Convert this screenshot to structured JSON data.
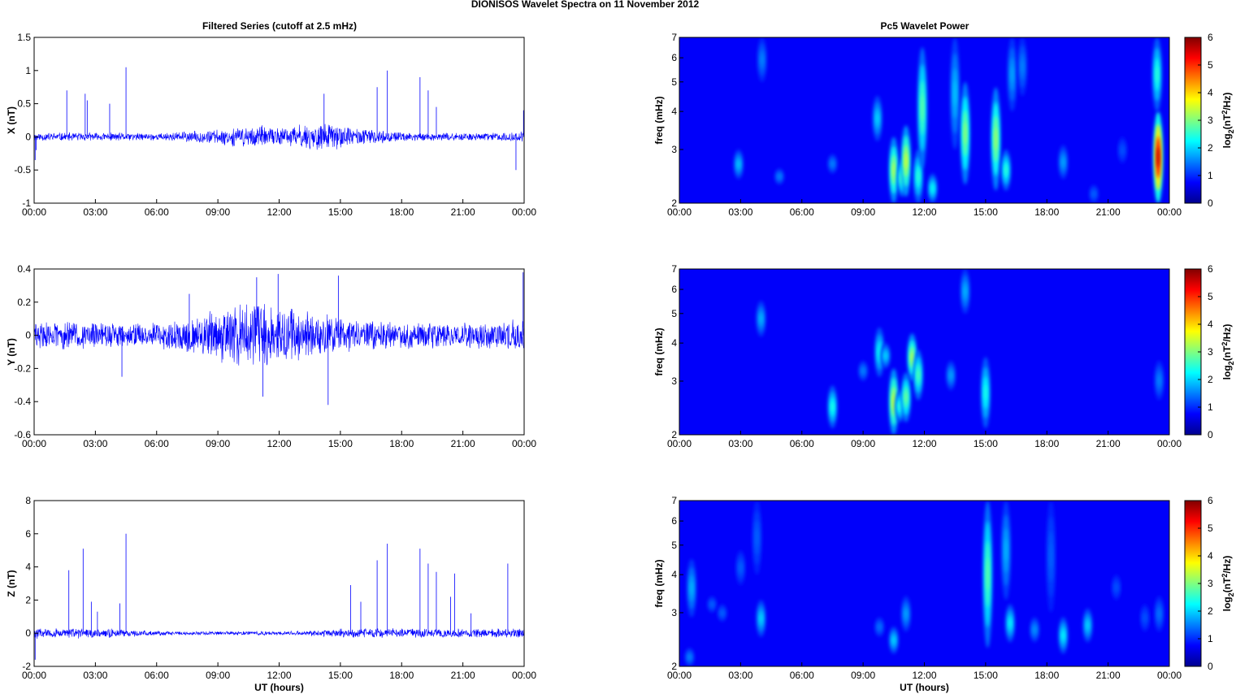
{
  "figure": {
    "title": "DIONISOS Wavelet Spectra on 11 November  2012",
    "left_title": "Filtered Series (cutoff at 2.5 mHz)",
    "right_title": "Pc5 Wavelet Power"
  },
  "chart_data": [
    {
      "type": "line",
      "id": "x-series",
      "ylabel": "X (nT)",
      "xlabel": "",
      "xlim": [
        0,
        24
      ],
      "ylim": [
        -1,
        1.5
      ],
      "yticks": [
        "-1",
        "-0.5",
        "0",
        "0.5",
        "1",
        "1.5"
      ],
      "xticks": [
        "00:00",
        "03:00",
        "06:00",
        "09:00",
        "12:00",
        "15:00",
        "18:00",
        "21:00",
        "00:00"
      ],
      "grid": false,
      "color": "#0000ff",
      "envelope_x": [
        0,
        3,
        6,
        7.5,
        9,
        10,
        11,
        11.5,
        12,
        13,
        14,
        14.5,
        15,
        16,
        17,
        18,
        21,
        23.8,
        24
      ],
      "envelope_y": [
        0.07,
        0.07,
        0.06,
        0.09,
        0.12,
        0.16,
        0.19,
        0.15,
        0.15,
        0.2,
        0.22,
        0.24,
        0.18,
        0.14,
        0.1,
        0.07,
        0.06,
        0.08,
        0.1
      ],
      "spikes": [
        [
          1.6,
          0.7
        ],
        [
          2.5,
          0.65
        ],
        [
          2.6,
          0.55
        ],
        [
          3.7,
          0.5
        ],
        [
          4.5,
          1.05
        ],
        [
          14.2,
          0.65
        ],
        [
          16.8,
          0.75
        ],
        [
          17.3,
          1.0
        ],
        [
          18.9,
          0.9
        ],
        [
          19.3,
          0.7
        ],
        [
          19.7,
          0.45
        ],
        [
          23.6,
          -0.5
        ],
        [
          23.97,
          0.4
        ],
        [
          24.0,
          -0.85
        ],
        [
          0.05,
          -0.35
        ],
        [
          0.1,
          -0.2
        ]
      ]
    },
    {
      "type": "line",
      "id": "y-series",
      "ylabel": "Y (nT)",
      "xlabel": "",
      "xlim": [
        0,
        24
      ],
      "ylim": [
        -0.6,
        0.4
      ],
      "yticks": [
        "-0.6",
        "-0.4",
        "-0.2",
        "0",
        "0.2",
        "0.4"
      ],
      "xticks": [
        "00:00",
        "03:00",
        "06:00",
        "09:00",
        "12:00",
        "15:00",
        "18:00",
        "21:00",
        "00:00"
      ],
      "grid": false,
      "color": "#0000ff",
      "envelope_x": [
        0,
        3,
        6,
        7.5,
        9,
        10,
        11,
        11.5,
        12,
        13,
        14,
        14.5,
        15,
        16,
        17,
        18,
        21,
        23.8,
        24
      ],
      "envelope_y": [
        0.09,
        0.09,
        0.08,
        0.12,
        0.16,
        0.2,
        0.24,
        0.2,
        0.2,
        0.17,
        0.15,
        0.14,
        0.12,
        0.1,
        0.09,
        0.09,
        0.08,
        0.1,
        0.12
      ],
      "spikes": [
        [
          7.6,
          0.25
        ],
        [
          10.9,
          0.35
        ],
        [
          11.95,
          0.37
        ],
        [
          14.9,
          0.36
        ],
        [
          4.3,
          -0.25
        ],
        [
          11.2,
          -0.37
        ],
        [
          14.4,
          -0.42
        ],
        [
          23.95,
          0.38
        ],
        [
          24.0,
          -0.2
        ]
      ]
    },
    {
      "type": "line",
      "id": "z-series",
      "ylabel": "Z (nT)",
      "xlabel": "UT (hours)",
      "xlim": [
        0,
        24
      ],
      "ylim": [
        -2,
        8
      ],
      "yticks": [
        "-2",
        "0",
        "2",
        "4",
        "6",
        "8"
      ],
      "xticks": [
        "00:00",
        "03:00",
        "06:00",
        "09:00",
        "12:00",
        "15:00",
        "18:00",
        "21:00",
        "00:00"
      ],
      "grid": false,
      "color": "#0000ff",
      "envelope_x": [
        0,
        3,
        5,
        7,
        10,
        13,
        15.3,
        16,
        18,
        21,
        24
      ],
      "envelope_y": [
        0.35,
        0.35,
        0.2,
        0.12,
        0.12,
        0.15,
        0.3,
        0.35,
        0.3,
        0.3,
        0.3
      ],
      "spikes": [
        [
          1.7,
          3.8
        ],
        [
          2.4,
          5.1
        ],
        [
          2.8,
          1.9
        ],
        [
          3.1,
          1.3
        ],
        [
          4.2,
          1.8
        ],
        [
          4.5,
          6.0
        ],
        [
          15.5,
          2.9
        ],
        [
          16.0,
          1.9
        ],
        [
          16.8,
          4.4
        ],
        [
          17.3,
          5.4
        ],
        [
          18.9,
          5.1
        ],
        [
          19.3,
          4.2
        ],
        [
          19.7,
          3.7
        ],
        [
          20.4,
          2.2
        ],
        [
          20.6,
          3.6
        ],
        [
          21.4,
          1.2
        ],
        [
          23.2,
          4.2
        ],
        [
          0.05,
          -1.6
        ]
      ]
    },
    {
      "type": "heatmap",
      "id": "x-wavelet",
      "ylabel": "freq (mHz)",
      "xlabel": "",
      "xlim": [
        0,
        24
      ],
      "ylim": [
        2,
        7
      ],
      "yscale": "log",
      "yticks": [
        "2",
        "3",
        "4",
        "5",
        "6",
        "7"
      ],
      "xticks": [
        "00:00",
        "03:00",
        "06:00",
        "09:00",
        "12:00",
        "15:00",
        "18:00",
        "21:00",
        "00:00"
      ],
      "colorbar": {
        "label": "log2(nT2/Hz)",
        "ticks": [
          "0",
          "1",
          "2",
          "3",
          "4",
          "5",
          "6"
        ],
        "range": [
          0,
          6
        ]
      },
      "blobs": [
        {
          "t": 2.9,
          "f_lo": 2.4,
          "f_hi": 3.0,
          "power": 1.4
        },
        {
          "t": 4.05,
          "f_lo": 5.0,
          "f_hi": 7.0,
          "power": 1.0
        },
        {
          "t": 4.9,
          "f_lo": 2.3,
          "f_hi": 2.6,
          "power": 1.0
        },
        {
          "t": 7.5,
          "f_lo": 2.5,
          "f_hi": 2.9,
          "power": 1.0
        },
        {
          "t": 9.7,
          "f_lo": 3.2,
          "f_hi": 4.5,
          "power": 1.5
        },
        {
          "t": 10.5,
          "f_lo": 2.0,
          "f_hi": 3.3,
          "power": 2.8
        },
        {
          "t": 10.9,
          "f_lo": 2.1,
          "f_hi": 2.8,
          "power": 2.2
        },
        {
          "t": 11.1,
          "f_lo": 2.1,
          "f_hi": 3.6,
          "power": 3.0
        },
        {
          "t": 11.7,
          "f_lo": 2.0,
          "f_hi": 3.0,
          "power": 2.0
        },
        {
          "t": 11.9,
          "f_lo": 2.6,
          "f_hi": 6.5,
          "power": 2.3
        },
        {
          "t": 12.4,
          "f_lo": 2.0,
          "f_hi": 2.5,
          "power": 1.8
        },
        {
          "t": 13.5,
          "f_lo": 3.0,
          "f_hi": 7.0,
          "power": 1.4
        },
        {
          "t": 14.0,
          "f_lo": 2.3,
          "f_hi": 5.0,
          "power": 2.6
        },
        {
          "t": 15.5,
          "f_lo": 2.2,
          "f_hi": 4.8,
          "power": 2.7
        },
        {
          "t": 16.0,
          "f_lo": 2.2,
          "f_hi": 3.0,
          "power": 2.0
        },
        {
          "t": 16.3,
          "f_lo": 4.0,
          "f_hi": 7.0,
          "power": 1.2
        },
        {
          "t": 16.8,
          "f_lo": 4.5,
          "f_hi": 7.0,
          "power": 1.0
        },
        {
          "t": 18.8,
          "f_lo": 2.4,
          "f_hi": 3.1,
          "power": 1.2
        },
        {
          "t": 20.3,
          "f_lo": 2.0,
          "f_hi": 2.3,
          "power": 0.8
        },
        {
          "t": 21.7,
          "f_lo": 2.7,
          "f_hi": 3.3,
          "power": 0.7
        },
        {
          "t": 23.45,
          "f_lo": 2.0,
          "f_hi": 4.0,
          "power": 5.2
        },
        {
          "t": 23.4,
          "f_lo": 4.0,
          "f_hi": 7.0,
          "power": 2.0
        }
      ]
    },
    {
      "type": "heatmap",
      "id": "y-wavelet",
      "ylabel": "freq (mHz)",
      "xlabel": "",
      "xlim": [
        0,
        24
      ],
      "ylim": [
        2,
        7
      ],
      "yscale": "log",
      "yticks": [
        "2",
        "3",
        "4",
        "5",
        "6",
        "7"
      ],
      "xticks": [
        "00:00",
        "03:00",
        "06:00",
        "09:00",
        "12:00",
        "15:00",
        "18:00",
        "21:00",
        "00:00"
      ],
      "colorbar": {
        "label": "log2(nT2/Hz)",
        "ticks": [
          "0",
          "1",
          "2",
          "3",
          "4",
          "5",
          "6"
        ],
        "range": [
          0,
          6
        ]
      },
      "blobs": [
        {
          "t": 4.0,
          "f_lo": 4.2,
          "f_hi": 5.5,
          "power": 1.3
        },
        {
          "t": 7.5,
          "f_lo": 2.1,
          "f_hi": 2.9,
          "power": 1.9
        },
        {
          "t": 9.0,
          "f_lo": 3.0,
          "f_hi": 3.5,
          "power": 1.0
        },
        {
          "t": 9.8,
          "f_lo": 3.1,
          "f_hi": 4.5,
          "power": 1.8
        },
        {
          "t": 10.1,
          "f_lo": 3.3,
          "f_hi": 4.0,
          "power": 1.5
        },
        {
          "t": 10.5,
          "f_lo": 2.0,
          "f_hi": 3.3,
          "power": 3.0
        },
        {
          "t": 10.8,
          "f_lo": 2.2,
          "f_hi": 2.8,
          "power": 2.0
        },
        {
          "t": 11.1,
          "f_lo": 2.2,
          "f_hi": 3.2,
          "power": 2.4
        },
        {
          "t": 11.4,
          "f_lo": 3.0,
          "f_hi": 4.3,
          "power": 2.8
        },
        {
          "t": 11.7,
          "f_lo": 2.6,
          "f_hi": 3.8,
          "power": 2.2
        },
        {
          "t": 13.3,
          "f_lo": 2.8,
          "f_hi": 3.5,
          "power": 1.2
        },
        {
          "t": 14.0,
          "f_lo": 5.0,
          "f_hi": 7.0,
          "power": 1.3
        },
        {
          "t": 15.0,
          "f_lo": 2.1,
          "f_hi": 3.6,
          "power": 1.9
        },
        {
          "t": 23.5,
          "f_lo": 2.6,
          "f_hi": 3.5,
          "power": 1.0
        }
      ]
    },
    {
      "type": "heatmap",
      "id": "z-wavelet",
      "ylabel": "freq (mHz)",
      "xlabel": "UT (hours)",
      "xlim": [
        0,
        24
      ],
      "ylim": [
        2,
        7
      ],
      "yscale": "log",
      "yticks": [
        "2",
        "3",
        "4",
        "5",
        "6",
        "7"
      ],
      "xticks": [
        "00:00",
        "03:00",
        "06:00",
        "09:00",
        "12:00",
        "15:00",
        "18:00",
        "21:00",
        "00:00"
      ],
      "colorbar": {
        "label": "log2(nT2/Hz)",
        "ticks": [
          "0",
          "1",
          "2",
          "3",
          "4",
          "5",
          "6"
        ],
        "range": [
          0,
          6
        ]
      },
      "blobs": [
        {
          "t": 0.5,
          "f_lo": 2.0,
          "f_hi": 2.3,
          "power": 1.0
        },
        {
          "t": 0.6,
          "f_lo": 2.9,
          "f_hi": 4.5,
          "power": 1.3
        },
        {
          "t": 1.6,
          "f_lo": 3.0,
          "f_hi": 3.4,
          "power": 0.8
        },
        {
          "t": 2.1,
          "f_lo": 2.8,
          "f_hi": 3.2,
          "power": 0.8
        },
        {
          "t": 3.0,
          "f_lo": 3.7,
          "f_hi": 4.8,
          "power": 0.8
        },
        {
          "t": 4.0,
          "f_lo": 2.5,
          "f_hi": 3.3,
          "power": 1.5
        },
        {
          "t": 3.8,
          "f_lo": 4.0,
          "f_hi": 7.0,
          "power": 0.8
        },
        {
          "t": 9.8,
          "f_lo": 2.5,
          "f_hi": 2.9,
          "power": 0.9
        },
        {
          "t": 10.5,
          "f_lo": 2.2,
          "f_hi": 2.7,
          "power": 1.5
        },
        {
          "t": 11.1,
          "f_lo": 2.6,
          "f_hi": 3.4,
          "power": 1.2
        },
        {
          "t": 15.1,
          "f_lo": 2.3,
          "f_hi": 7.0,
          "power": 2.3
        },
        {
          "t": 16.2,
          "f_lo": 2.4,
          "f_hi": 3.2,
          "power": 1.7
        },
        {
          "t": 16.0,
          "f_lo": 3.3,
          "f_hi": 7.0,
          "power": 1.3
        },
        {
          "t": 17.4,
          "f_lo": 2.4,
          "f_hi": 2.9,
          "power": 1.1
        },
        {
          "t": 18.2,
          "f_lo": 3.0,
          "f_hi": 7.0,
          "power": 0.8
        },
        {
          "t": 18.8,
          "f_lo": 2.2,
          "f_hi": 2.9,
          "power": 1.7
        },
        {
          "t": 20.0,
          "f_lo": 2.4,
          "f_hi": 3.1,
          "power": 1.5
        },
        {
          "t": 21.4,
          "f_lo": 3.3,
          "f_hi": 4.0,
          "power": 0.7
        },
        {
          "t": 22.8,
          "f_lo": 2.6,
          "f_hi": 3.2,
          "power": 0.7
        },
        {
          "t": 23.5,
          "f_lo": 2.6,
          "f_hi": 3.4,
          "power": 0.9
        }
      ]
    }
  ]
}
